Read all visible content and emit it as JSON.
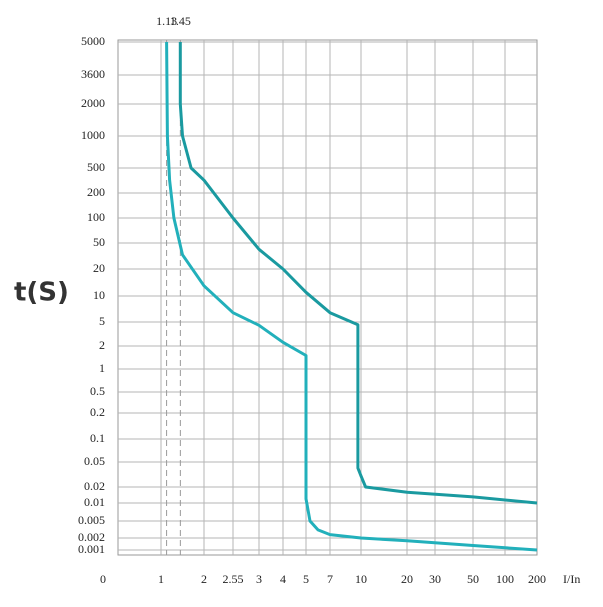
{
  "chart_data": {
    "type": "line",
    "y_label": "t(S)",
    "x_label": "I/In",
    "xlim": [
      0,
      200
    ],
    "ylim": [
      0.001,
      5000
    ],
    "xticks": [
      0,
      1,
      2,
      2.55,
      3,
      4,
      5,
      7,
      10,
      20,
      30,
      50,
      100,
      200
    ],
    "yticks": [
      5000,
      3600,
      2000,
      1000,
      500,
      200,
      100,
      50,
      20,
      10,
      5,
      2,
      1,
      0.5,
      0.2,
      0.1,
      0.05,
      0.02,
      0.01,
      0.005,
      0.002,
      0.001
    ],
    "grid": true,
    "annotations": [
      1.13,
      1.45
    ],
    "series": [
      {
        "color": "#22b0bb",
        "x": [
          1.13,
          1.15,
          1.2,
          1.3,
          1.5,
          2,
          2.55,
          3,
          4,
          5,
          5,
          5.33,
          6,
          7,
          10,
          20,
          50,
          200
        ],
        "values": [
          5000,
          1000,
          320,
          100,
          33,
          13,
          6.4,
          4.4,
          2.3,
          1.5,
          0.012,
          0.005,
          0.0031,
          0.0024,
          0.002,
          0.0017,
          0.0013,
          0.001
        ]
      },
      {
        "color": "#1a9aa0",
        "x": [
          1.45,
          1.45,
          1.5,
          1.7,
          2,
          2.55,
          3,
          4,
          5,
          7,
          9.7,
          9.7,
          10,
          11,
          20,
          50,
          200
        ],
        "values": [
          5000,
          2000,
          1000,
          500,
          320,
          100,
          40,
          20,
          11,
          6.4,
          4.5,
          0.04,
          0.03,
          0.02,
          0.016,
          0.013,
          0.01
        ]
      }
    ]
  }
}
